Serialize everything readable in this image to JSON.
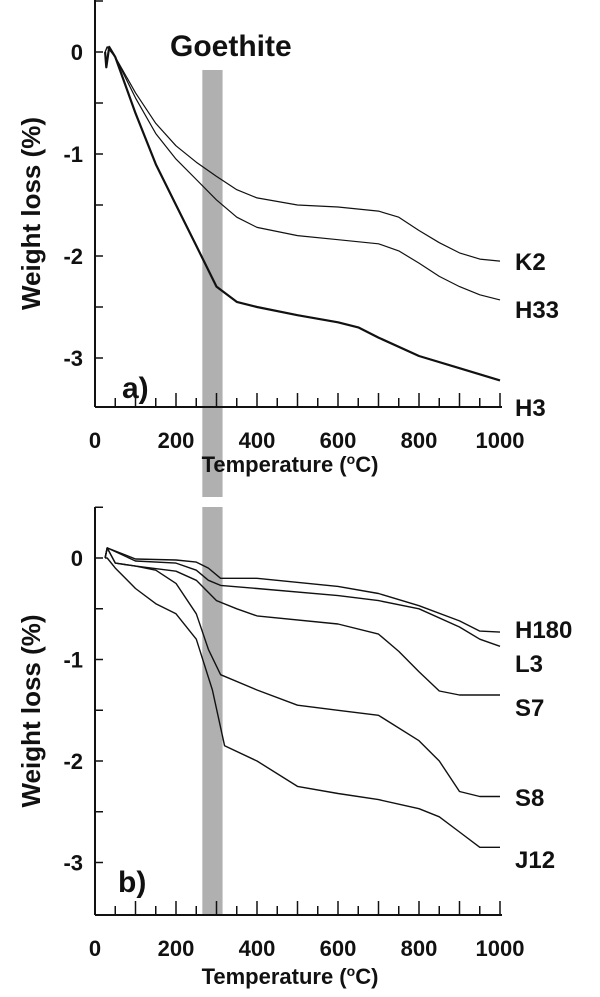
{
  "band_label": "Goethite",
  "band_range": [
    265,
    315
  ],
  "colors": {
    "line": "#111111",
    "band": "#b0b0b0"
  },
  "chart_data": [
    {
      "type": "line",
      "panel_label": "a)",
      "xlabel": {
        "pre": "Temperature (",
        "sup": "o",
        "post": "C)"
      },
      "ylabel": "Weight loss (%)",
      "xlim": [
        0,
        1000
      ],
      "ylim": [
        -3.5,
        0.5
      ],
      "xticks": [
        0,
        200,
        400,
        600,
        800,
        1000
      ],
      "yticks": [
        0,
        -1,
        -2,
        -3
      ],
      "series": [
        {
          "name": "K2",
          "width": 1.2,
          "x": [
            25,
            30,
            50,
            100,
            150,
            200,
            250,
            300,
            350,
            400,
            500,
            600,
            700,
            750,
            800,
            850,
            900,
            950,
            1000
          ],
          "y": [
            0,
            0.05,
            -0.05,
            -0.4,
            -0.7,
            -0.92,
            -1.08,
            -1.22,
            -1.35,
            -1.43,
            -1.5,
            -1.52,
            -1.56,
            -1.62,
            -1.75,
            -1.87,
            -1.97,
            -2.03,
            -2.05
          ]
        },
        {
          "name": "H33",
          "width": 1.2,
          "x": [
            25,
            30,
            50,
            100,
            150,
            200,
            250,
            300,
            350,
            400,
            500,
            600,
            700,
            750,
            800,
            850,
            900,
            950,
            1000
          ],
          "y": [
            0,
            0.05,
            -0.05,
            -0.45,
            -0.8,
            -1.05,
            -1.25,
            -1.45,
            -1.62,
            -1.72,
            -1.8,
            -1.84,
            -1.88,
            -1.95,
            -2.07,
            -2.2,
            -2.3,
            -2.38,
            -2.43
          ]
        },
        {
          "name": "H3",
          "width": 2.2,
          "x": [
            25,
            28,
            35,
            50,
            100,
            150,
            200,
            250,
            300,
            350,
            400,
            500,
            600,
            650,
            700,
            800,
            900,
            1000
          ],
          "y": [
            0,
            -0.15,
            0.05,
            -0.05,
            -0.6,
            -1.1,
            -1.5,
            -1.9,
            -2.3,
            -2.45,
            -2.5,
            -2.58,
            -2.65,
            -2.7,
            -2.8,
            -2.98,
            -3.1,
            -3.22
          ]
        }
      ]
    },
    {
      "type": "line",
      "panel_label": "b)",
      "xlabel": {
        "pre": "Temperature (",
        "sup": "o",
        "post": "C)"
      },
      "ylabel": "Weight loss (%)",
      "xlim": [
        0,
        1000
      ],
      "ylim": [
        -3.5,
        0.5
      ],
      "xticks": [
        0,
        200,
        400,
        600,
        800,
        1000
      ],
      "yticks": [
        0,
        -1,
        -2,
        -3
      ],
      "series": [
        {
          "name": "H180",
          "width": 1.4,
          "x": [
            25,
            30,
            100,
            200,
            250,
            280,
            310,
            400,
            600,
            700,
            800,
            900,
            950,
            1000
          ],
          "y": [
            0,
            0.1,
            -0.01,
            -0.02,
            -0.04,
            -0.1,
            -0.2,
            -0.2,
            -0.28,
            -0.35,
            -0.47,
            -0.62,
            -0.72,
            -0.73
          ]
        },
        {
          "name": "L3",
          "width": 1.4,
          "x": [
            25,
            30,
            100,
            200,
            250,
            280,
            310,
            400,
            600,
            700,
            800,
            900,
            950,
            1000
          ],
          "y": [
            0,
            0.1,
            -0.03,
            -0.05,
            -0.12,
            -0.22,
            -0.27,
            -0.3,
            -0.37,
            -0.42,
            -0.5,
            -0.68,
            -0.8,
            -0.87
          ]
        },
        {
          "name": "S7",
          "width": 1.4,
          "x": [
            25,
            30,
            50,
            100,
            200,
            250,
            300,
            350,
            400,
            600,
            700,
            750,
            800,
            850,
            900,
            1000
          ],
          "y": [
            0,
            0.1,
            -0.05,
            -0.08,
            -0.13,
            -0.22,
            -0.42,
            -0.5,
            -0.57,
            -0.65,
            -0.75,
            -0.92,
            -1.12,
            -1.31,
            -1.35,
            -1.35
          ]
        },
        {
          "name": "S8",
          "width": 1.4,
          "x": [
            25,
            30,
            50,
            100,
            150,
            200,
            250,
            280,
            310,
            400,
            500,
            600,
            700,
            800,
            850,
            900,
            950,
            1000
          ],
          "y": [
            0,
            0.1,
            -0.05,
            -0.08,
            -0.12,
            -0.25,
            -0.55,
            -0.9,
            -1.15,
            -1.3,
            -1.45,
            -1.5,
            -1.55,
            -1.8,
            -2.0,
            -2.3,
            -2.35,
            -2.35
          ]
        },
        {
          "name": "J12",
          "width": 1.4,
          "x": [
            25,
            30,
            50,
            100,
            150,
            200,
            250,
            290,
            320,
            400,
            500,
            600,
            700,
            800,
            850,
            900,
            950,
            1000
          ],
          "y": [
            0,
            0,
            -0.1,
            -0.3,
            -0.45,
            -0.55,
            -0.8,
            -1.3,
            -1.85,
            -2.0,
            -2.25,
            -2.32,
            -2.38,
            -2.47,
            -2.55,
            -2.7,
            -2.85,
            -2.85
          ]
        }
      ]
    }
  ]
}
